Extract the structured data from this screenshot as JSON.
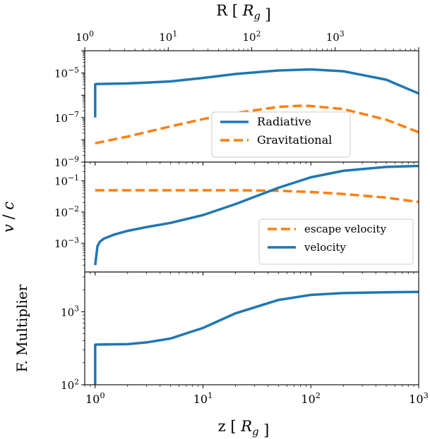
{
  "colors": {
    "radiative": "#1f77b4",
    "gravitational": "#ff7f0e",
    "velocity": "#1f77b4",
    "escape_velocity": "#ff7f0e",
    "multiplier": "#1f77b4"
  },
  "chart_data": [
    {
      "type": "line",
      "panel": "top",
      "title": "",
      "xlabel": "z [ R_g ]",
      "top_xlabel": "R [ R_g ]",
      "ylabel": "",
      "xscale": "log",
      "yscale": "log",
      "xlim": [
        0.8,
        1000
      ],
      "ylim": [
        1e-09,
        0.0001
      ],
      "top_xlim": [
        1,
        10000
      ],
      "top_xticks": [
        "10^0",
        "10^1",
        "10^2",
        "10^3"
      ],
      "yticks": [
        "10^-9",
        "10^-7",
        "10^-5"
      ],
      "legend": "center-right",
      "series": [
        {
          "name": "Radiative",
          "style": "solid",
          "x": [
            1.0,
            1.0,
            1.01,
            1.5,
            2,
            3,
            5,
            10,
            20,
            50,
            100,
            200,
            500,
            1000
          ],
          "y": [
            1e-07,
            3e-06,
            3.2e-06,
            3.3e-06,
            3.4e-06,
            3.7e-06,
            4.2e-06,
            6e-06,
            9e-06,
            1.3e-05,
            1.45e-05,
            1.2e-05,
            5e-06,
            1.2e-06
          ]
        },
        {
          "name": "Gravitational",
          "style": "dashed",
          "x": [
            1,
            2,
            5,
            10,
            20,
            50,
            80,
            100,
            200,
            500,
            1000
          ],
          "y": [
            7e-09,
            1.4e-08,
            4e-08,
            8.5e-08,
            1.6e-07,
            3e-07,
            3.4e-07,
            3.3e-07,
            2.4e-07,
            8e-08,
            2.2e-08
          ]
        }
      ]
    },
    {
      "type": "line",
      "panel": "middle",
      "title": "",
      "xlabel": "",
      "ylabel": "v / c",
      "xscale": "log",
      "yscale": "log",
      "xlim": [
        0.8,
        1000
      ],
      "ylim": [
        0.00012,
        0.4
      ],
      "yticks": [
        "10^-3",
        "10^-2",
        "10^-1"
      ],
      "legend": "lower-right",
      "series": [
        {
          "name": "escape velocity",
          "style": "dashed",
          "x": [
            1,
            2,
            5,
            10,
            20,
            50,
            100,
            200,
            500,
            1000
          ],
          "y": [
            0.05,
            0.05,
            0.05,
            0.05,
            0.05,
            0.048,
            0.044,
            0.038,
            0.029,
            0.021
          ]
        },
        {
          "name": "velocity",
          "style": "solid",
          "x": [
            1.0,
            1.05,
            1.1,
            1.2,
            1.5,
            2,
            3,
            5,
            10,
            20,
            50,
            100,
            200,
            500,
            1000
          ],
          "y": [
            0.0002,
            0.0008,
            0.0011,
            0.0014,
            0.0019,
            0.0025,
            0.0033,
            0.0045,
            0.008,
            0.018,
            0.06,
            0.13,
            0.21,
            0.28,
            0.3
          ]
        }
      ]
    },
    {
      "type": "line",
      "panel": "bottom",
      "title": "",
      "xlabel": "z [ R_g ]",
      "ylabel": "F. Multiplier",
      "xscale": "log",
      "yscale": "log",
      "xlim": [
        0.8,
        1000
      ],
      "ylim": [
        100,
        3500
      ],
      "xticks": [
        "10^0",
        "10^1",
        "10^2",
        "10^3"
      ],
      "yticks": [
        "10^2",
        "10^3"
      ],
      "series": [
        {
          "name": "",
          "style": "solid",
          "x": [
            1.0,
            1.0,
            1.01,
            2,
            3,
            5,
            10,
            20,
            50,
            100,
            200,
            500,
            1000
          ],
          "y": [
            100,
            350,
            355,
            360,
            380,
            430,
            600,
            950,
            1450,
            1700,
            1800,
            1850,
            1870
          ]
        }
      ]
    }
  ]
}
